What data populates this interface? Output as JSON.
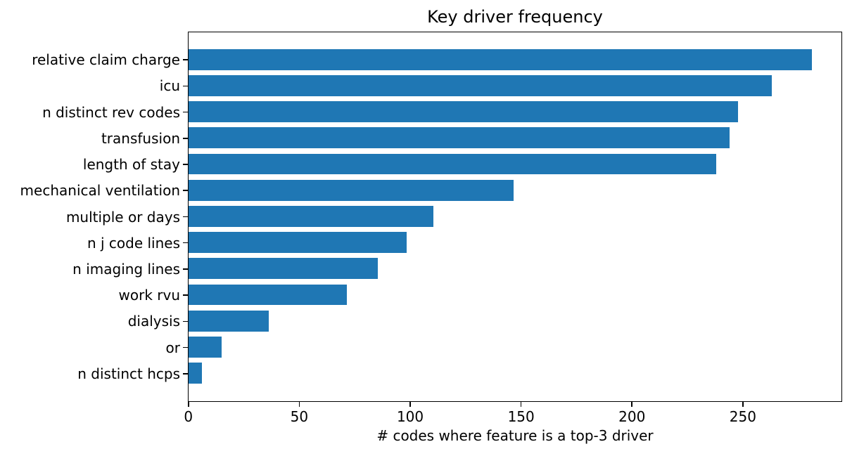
{
  "chart_data": {
    "type": "bar",
    "orientation": "horizontal",
    "title": "Key driver frequency",
    "xlabel": "# codes where feature is a top-3 driver",
    "ylabel": "",
    "categories": [
      "relative claim charge",
      "icu",
      "n distinct rev codes",
      "transfusion",
      "length of stay",
      "mechanical ventilation",
      "multiple or days",
      "n j code lines",
      "n imaging lines",
      "work rvu",
      "dialysis",
      "or",
      "n distinct hcps"
    ],
    "values": [
      280,
      262,
      247,
      243,
      237,
      146,
      110,
      98,
      85,
      71,
      36,
      15,
      6
    ],
    "xticks": [
      0,
      50,
      100,
      150,
      200,
      250
    ],
    "xlim": [
      0,
      294
    ],
    "ylim": [
      -1.04,
      13.04
    ],
    "bar_height_frac": 0.8,
    "bar_color": "#1f77b4",
    "background": "#ffffff",
    "text_color": "#000000",
    "grid": false,
    "legend": null
  }
}
